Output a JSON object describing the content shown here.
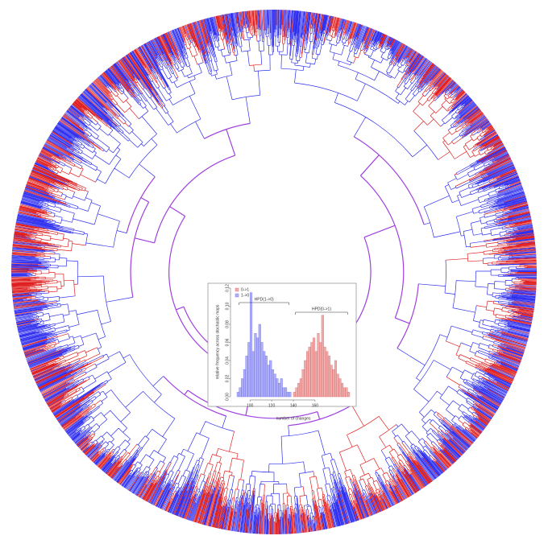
{
  "chart_data": {
    "type": "histogram",
    "xlabel": "number of changes",
    "ylabel": "relative frequency across stochastic maps",
    "xlim": [
      85,
      195
    ],
    "xticks": [
      100,
      120,
      140,
      160
    ],
    "ylim": [
      0,
      0.12
    ],
    "yticks": [
      {
        "value": 0,
        "label": "0.00"
      },
      {
        "value": 0.02,
        "label": "0.02"
      },
      {
        "value": 0.04,
        "label": "0.04"
      },
      {
        "value": 0.06,
        "label": "0.06"
      },
      {
        "value": 0.08,
        "label": "0.08"
      },
      {
        "value": 0.1,
        "label": "0.10"
      },
      {
        "value": 0.12,
        "label": "0.12"
      }
    ],
    "legend": "top-left",
    "series": [
      {
        "name": "0->1",
        "color": "#e06a6a",
        "hpd_label": "HPD(0->1)",
        "bins": [
          140,
          142,
          144,
          146,
          148,
          150,
          152,
          154,
          156,
          158,
          160,
          162,
          164,
          166,
          168,
          170,
          172,
          174,
          176,
          178,
          180,
          182,
          184,
          186,
          188,
          190,
          192
        ],
        "values": [
          0.005,
          0.01,
          0.015,
          0.02,
          0.03,
          0.04,
          0.05,
          0.055,
          0.06,
          0.065,
          0.05,
          0.07,
          0.06,
          0.09,
          0.055,
          0.05,
          0.045,
          0.035,
          0.03,
          0.04,
          0.025,
          0.02,
          0.015,
          0.01,
          0.01,
          0.005
        ]
      },
      {
        "name": "1->0",
        "color": "#7070f0",
        "hpd_label": "HPD(1->0)",
        "bins": [
          88,
          90,
          92,
          94,
          96,
          98,
          100,
          102,
          104,
          106,
          108,
          110,
          112,
          114,
          116,
          118,
          120,
          122,
          124,
          126,
          128,
          130,
          132,
          134,
          136,
          138
        ],
        "values": [
          0.005,
          0.01,
          0.02,
          0.03,
          0.045,
          0.06,
          0.115,
          0.05,
          0.07,
          0.065,
          0.08,
          0.06,
          0.05,
          0.045,
          0.035,
          0.04,
          0.03,
          0.025,
          0.02,
          0.015,
          0.02,
          0.01,
          0.01,
          0.005,
          0.005
        ]
      }
    ]
  }
}
